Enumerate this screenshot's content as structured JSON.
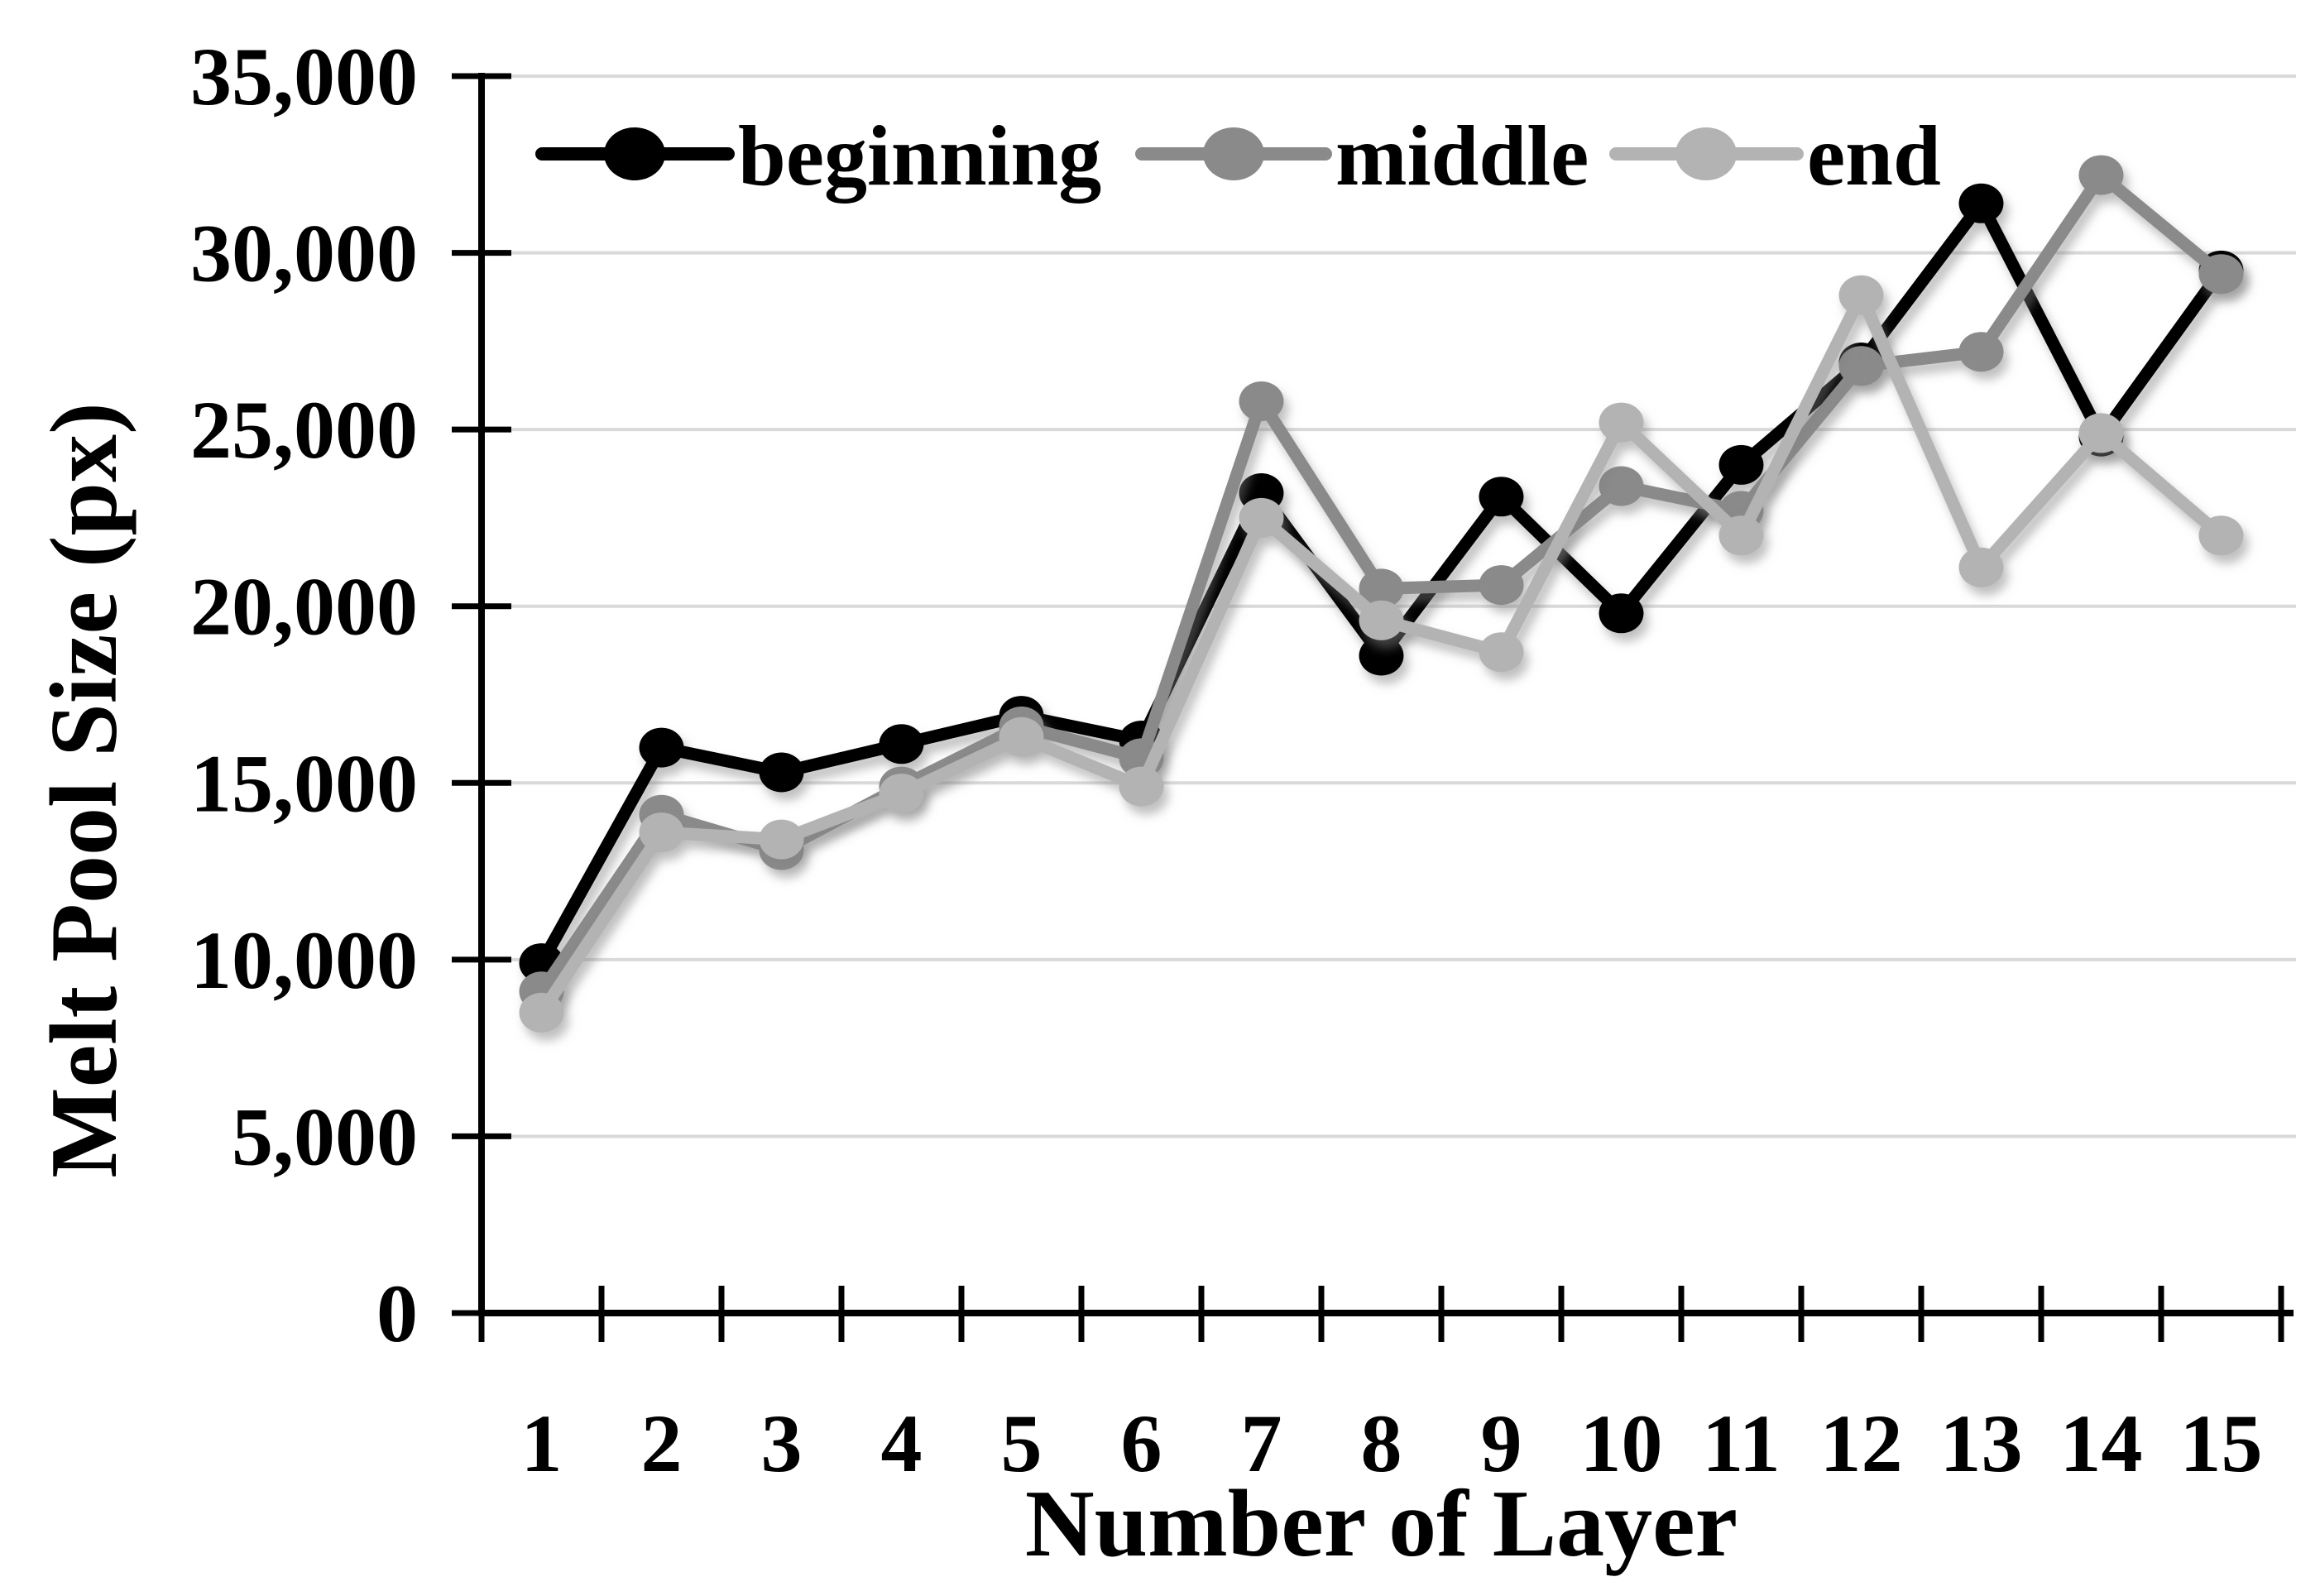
{
  "page": {
    "background": "#ffffff"
  },
  "chart_data": {
    "type": "line",
    "title": "",
    "xlabel": "Number of Layer",
    "ylabel": "Melt Pool Size (px)",
    "categories": [
      "1",
      "2",
      "3",
      "4",
      "5",
      "6",
      "7",
      "8",
      "9",
      "10",
      "11",
      "12",
      "13",
      "14",
      "15"
    ],
    "ylim": [
      0,
      35000
    ],
    "ytick_step": 5000,
    "ytick_labels": [
      "0",
      "5,000",
      "10,000",
      "15,000",
      "20,000",
      "25,000",
      "30,000",
      "35,000"
    ],
    "grid": true,
    "legend_position": "top-inside",
    "gridline_color": "#d9d9d9",
    "axis_color": "#000000",
    "series": [
      {
        "name": "beginning",
        "color": "#000000",
        "values": [
          9900,
          16000,
          15300,
          16100,
          16900,
          16200,
          23200,
          18600,
          23100,
          19800,
          24000,
          26900,
          31400,
          24800,
          29500
        ]
      },
      {
        "name": "middle",
        "color": "#8a8a8a",
        "values": [
          9100,
          14100,
          13100,
          14900,
          16600,
          15700,
          25800,
          20500,
          20600,
          23400,
          22700,
          26800,
          27200,
          32200,
          29400
        ]
      },
      {
        "name": "end",
        "color": "#b3b3b3",
        "values": [
          8500,
          13600,
          13400,
          14700,
          16300,
          14900,
          22500,
          19600,
          18700,
          25200,
          22000,
          28800,
          21100,
          24900,
          22000
        ]
      }
    ]
  }
}
